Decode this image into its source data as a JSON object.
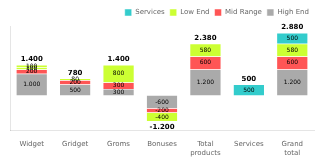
{
  "chart_data": {
    "type": "bar",
    "stacked": true,
    "data_labels": true,
    "tick_labels": "x",
    "grid": false,
    "legend": "upper right",
    "categories": [
      "Widget",
      "Gridget",
      "Groms",
      "Bonuses",
      "Total\nproducts",
      "Services",
      "Grand\ntotal"
    ],
    "series": [
      {
        "name": "High End",
        "color": "#aaaaaa",
        "values": [
          1000,
          500,
          300,
          -600,
          1200,
          null,
          1200
        ],
        "value_labels": [
          "1.000",
          "500",
          "300",
          "-600",
          "1.200",
          null,
          "1.200"
        ]
      },
      {
        "name": "Mid Range",
        "color": "#ff5555",
        "values": [
          200,
          200,
          300,
          -200,
          600,
          null,
          600
        ],
        "value_labels": [
          "200",
          "200",
          "300",
          "-200",
          "600",
          null,
          "600"
        ]
      },
      {
        "name": "Low End",
        "color": "#ccff33",
        "values": [
          100,
          80,
          800,
          -400,
          580,
          null,
          580
        ],
        "value_labels": [
          "100",
          "80",
          "800",
          "-400",
          "580",
          null,
          "580"
        ]
      },
      {
        "name": "Low End",
        "color": "#ccff33",
        "values": [
          100,
          null,
          null,
          null,
          null,
          null,
          null
        ],
        "value_labels": [
          "100",
          null,
          null,
          null,
          null,
          null,
          null
        ]
      },
      {
        "name": "Services",
        "color": "#33cccc",
        "values": [
          null,
          null,
          null,
          null,
          null,
          500,
          500
        ],
        "value_labels": [
          null,
          null,
          null,
          null,
          null,
          "500",
          "500"
        ]
      }
    ],
    "totals": [
      1400,
      780,
      1400,
      -1200,
      2380,
      500,
      2880
    ],
    "total_labels": [
      "1.400",
      "780",
      "1.400",
      "-1.200",
      "2.380",
      "500",
      "2.880"
    ],
    "ylim": [
      -1600,
      3200
    ]
  }
}
